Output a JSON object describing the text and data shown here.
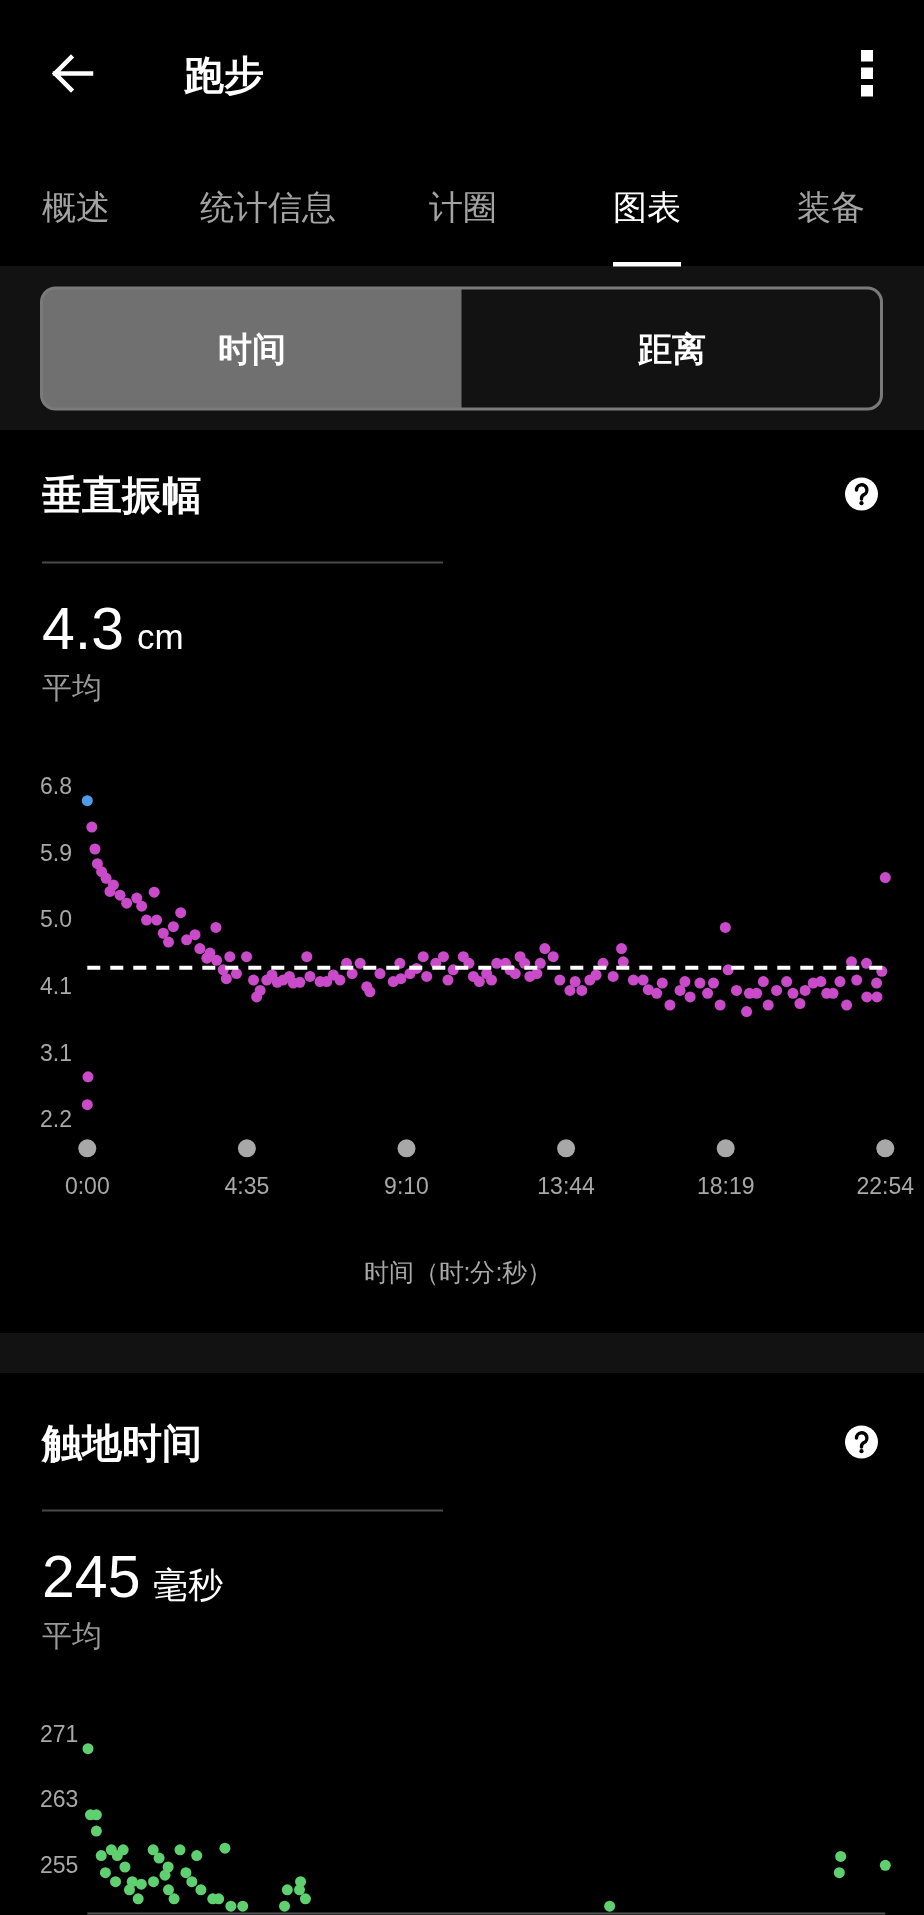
{
  "chart_data": [
    {
      "type": "other",
      "title": "跑步",
      "annotations": [
        "概述",
        "统计信息",
        "计圈",
        "图表",
        "装备",
        "时间",
        "距离"
      ]
    },
    {
      "type": "scatter",
      "title": "垂直振幅",
      "annotations": [
        "4.3 cm",
        "平均"
      ],
      "xlabel": "时间（时:分:秒）",
      "marker": "circle",
      "xlim": [
        0,
        22.9
      ],
      "xticks": [
        {
          "value": 0,
          "label": "0:00"
        },
        {
          "value": 4.58,
          "label": "4:35"
        },
        {
          "value": 9.16,
          "label": "9:10"
        },
        {
          "value": 13.74,
          "label": "13:44"
        },
        {
          "value": 18.32,
          "label": "18:19"
        },
        {
          "value": 22.9,
          "label": "22:54"
        }
      ],
      "ylim": [
        2.23,
        6.78
      ],
      "yticks": [
        {
          "value": 2.23,
          "label": "2.2"
        },
        {
          "value": 3.14,
          "label": "3.1"
        },
        {
          "value": 4.05,
          "label": "4.1"
        },
        {
          "value": 4.96,
          "label": "5.0"
        },
        {
          "value": 5.87,
          "label": "5.9"
        },
        {
          "value": 6.78,
          "label": "6.8"
        }
      ],
      "ref_lines": [
        {
          "axis": "y",
          "value": 4.3,
          "color": "#ffffff",
          "line_style": "dashed"
        }
      ],
      "series": [
        {
          "color": "#c94bc9",
          "x": [
            0.0,
            0.02,
            0.13,
            0.22,
            0.29,
            0.41,
            0.54,
            0.65,
            0.75,
            0.94,
            1.13,
            1.42,
            1.56,
            1.7,
            1.92,
            1.99,
            2.18,
            2.33,
            2.47,
            2.68,
            2.85,
            3.09,
            3.23,
            3.43,
            3.52,
            3.69,
            3.71,
            3.9,
            3.99,
            4.09,
            4.28,
            4.57,
            4.77,
            4.86,
            4.96,
            5.15,
            5.3,
            5.45,
            5.62,
            5.8,
            5.91,
            6.1,
            6.3,
            6.39,
            6.68,
            6.87,
            7.06,
            7.25,
            7.44,
            7.6,
            7.83,
            8.02,
            8.11,
            8.4,
            8.78,
            8.97,
            9.0,
            9.26,
            9.45,
            9.64,
            9.74,
            10.0,
            10.22,
            10.35,
            10.5,
            10.79,
            10.95,
            11.08,
            11.25,
            11.46,
            11.6,
            11.75,
            12.0,
            12.13,
            12.28,
            12.42,
            12.55,
            12.7,
            12.9,
            13.0,
            13.13,
            13.37,
            13.56,
            13.85,
            14.0,
            14.19,
            14.42,
            14.6,
            14.8,
            15.09,
            15.33,
            15.38,
            15.67,
            15.95,
            16.1,
            16.34,
            16.5,
            16.72,
            17.01,
            17.15,
            17.3,
            17.58,
            17.8,
            17.97,
            18.16,
            18.31,
            18.39,
            18.63,
            18.92,
            19.0,
            19.21,
            19.4,
            19.54,
            19.78,
            20.07,
            20.25,
            20.45,
            20.6,
            20.83,
            21.05,
            21.22,
            21.4,
            21.6,
            21.79,
            21.93,
            22.08,
            22.36,
            22.37,
            22.65,
            22.66,
            22.8,
            22.9
          ],
          "values": [
            2.43,
            2.81,
            6.22,
            5.92,
            5.72,
            5.61,
            5.52,
            5.34,
            5.43,
            5.29,
            5.18,
            5.25,
            5.14,
            4.95,
            5.33,
            4.95,
            4.77,
            4.65,
            4.86,
            5.05,
            4.68,
            4.75,
            4.56,
            4.43,
            4.5,
            4.85,
            4.4,
            4.27,
            4.15,
            4.45,
            4.22,
            4.45,
            4.13,
            3.9,
            3.99,
            4.13,
            4.2,
            4.1,
            4.13,
            4.18,
            4.09,
            4.1,
            4.45,
            4.18,
            4.11,
            4.11,
            4.2,
            4.13,
            4.36,
            4.22,
            4.36,
            4.04,
            3.97,
            4.22,
            4.11,
            4.36,
            4.15,
            4.22,
            4.29,
            4.45,
            4.18,
            4.36,
            4.45,
            4.13,
            4.27,
            4.45,
            4.36,
            4.18,
            4.11,
            4.22,
            4.13,
            4.36,
            4.36,
            4.27,
            4.22,
            4.45,
            4.36,
            4.18,
            4.22,
            4.36,
            4.56,
            4.45,
            4.13,
            3.99,
            4.11,
            3.99,
            4.13,
            4.2,
            4.36,
            4.18,
            4.56,
            4.38,
            4.13,
            4.13,
            4.0,
            3.95,
            4.09,
            3.79,
            3.99,
            4.11,
            3.9,
            4.09,
            3.95,
            4.09,
            3.79,
            4.85,
            4.27,
            3.99,
            3.7,
            3.95,
            3.95,
            4.11,
            3.79,
            3.99,
            4.11,
            3.95,
            3.81,
            3.99,
            4.09,
            4.11,
            3.95,
            3.95,
            4.11,
            3.79,
            4.38,
            4.13,
            4.36,
            3.9,
            4.09,
            3.9,
            4.25,
            5.53
          ]
        },
        {
          "color": "#4f9de8",
          "x": [
            0.0
          ],
          "values": [
            6.58
          ]
        }
      ]
    },
    {
      "type": "scatter",
      "title": "触地时间",
      "annotations": [
        "245 毫秒",
        "平均"
      ],
      "marker": "circle",
      "tick_labels": "y",
      "xlim": [
        0,
        22.9
      ],
      "ylim": [
        249,
        271
      ],
      "yticks": [
        255,
        263,
        271
      ],
      "series": [
        {
          "color": "#5fd06f",
          "x": [
            0.02,
            0.09,
            0.26,
            0.26,
            0.4,
            0.52,
            0.69,
            0.81,
            0.86,
            1.03,
            1.08,
            1.21,
            1.29,
            1.46,
            1.55,
            1.89,
            1.9,
            2.06,
            2.23,
            2.32,
            2.33,
            2.49,
            2.66,
            2.83,
            3.0,
            3.14,
            3.26,
            3.6,
            3.77,
            3.95,
            4.12,
            4.46,
            5.66,
            5.74,
            6.09,
            6.12,
            6.26,
            14.99,
            21.58,
            21.62,
            22.9
          ],
          "values": [
            269.2,
            261.1,
            261.1,
            259.1,
            256.1,
            254.0,
            256.8,
            252.9,
            256.1,
            256.8,
            254.7,
            251.9,
            252.9,
            250.8,
            252.6,
            256.8,
            252.9,
            255.8,
            253.7,
            254.7,
            251.9,
            250.8,
            256.8,
            254.0,
            252.9,
            256.1,
            251.9,
            250.8,
            250.8,
            257.0,
            249.9,
            249.9,
            249.9,
            251.9,
            251.9,
            252.9,
            250.8,
            249.9,
            254.0,
            256.0,
            254.9
          ]
        }
      ]
    }
  ]
}
